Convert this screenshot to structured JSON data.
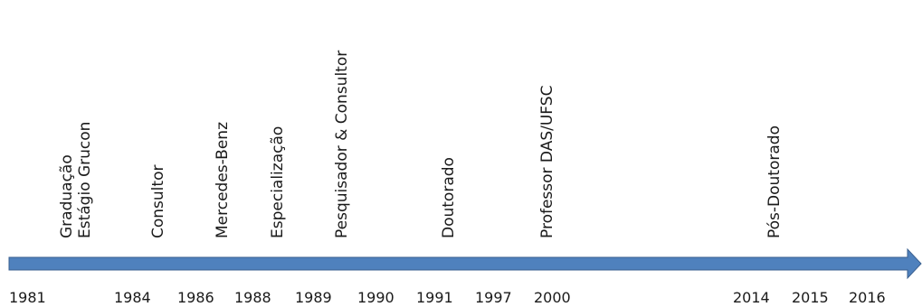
{
  "events": [
    {
      "id": "graduacao",
      "label": "Graduação"
    },
    {
      "id": "estagio-grucon",
      "label": "Estágio Grucon"
    },
    {
      "id": "consultor",
      "label": "Consultor"
    },
    {
      "id": "mercedes-benz",
      "label": "Mercedes-Benz"
    },
    {
      "id": "especializacao",
      "label": "Especialização"
    },
    {
      "id": "pesquisador-consultor",
      "label": "Pesquisador & Consultor"
    },
    {
      "id": "doutorado",
      "label": "Doutorado"
    },
    {
      "id": "professor-das-ufsc",
      "label": "Professor DAS/UFSC"
    },
    {
      "id": "pos-doutorado",
      "label": "Pós-Doutorado"
    }
  ],
  "years": [
    "1981",
    "1984",
    "1986",
    "1988",
    "1989",
    "1990",
    "1991",
    "1997",
    "2000",
    "2014",
    "2015",
    "2016"
  ],
  "colors": {
    "arrow_fill": "#4f81bd",
    "arrow_stroke": "#3a5f8f",
    "text": "#1a1a1a"
  }
}
